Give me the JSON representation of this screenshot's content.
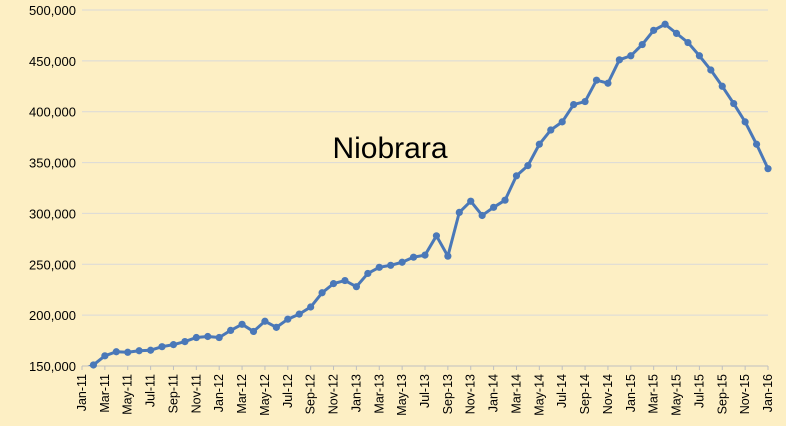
{
  "chart_data": {
    "type": "line",
    "title": "Niobrara",
    "xlabel": "",
    "ylabel": "",
    "ylim": [
      150000,
      500000
    ],
    "y_ticks": [
      "150,000",
      "200,000",
      "250,000",
      "300,000",
      "350,000",
      "400,000",
      "450,000",
      "500,000"
    ],
    "y_tick_values": [
      150000,
      200000,
      250000,
      300000,
      350000,
      400000,
      450000,
      500000
    ],
    "x_tick_labels": [
      "Jan-11",
      "Mar-11",
      "May-11",
      "Jul-11",
      "Sep-11",
      "Nov-11",
      "Jan-12",
      "Mar-12",
      "May-12",
      "Jul-12",
      "Sep-12",
      "Nov-12",
      "Jan-13",
      "Mar-13",
      "May-13",
      "Jul-13",
      "Sep-13",
      "Nov-13",
      "Jan-14",
      "Mar-14",
      "May-14",
      "Jul-14",
      "Sep-14",
      "Nov-14",
      "Jan-15",
      "Mar-15",
      "May-15",
      "Jul-15",
      "Sep-15",
      "Nov-15",
      "Jan-16"
    ],
    "grid": true,
    "legend": "none",
    "colors": {
      "background": "#fdefc4",
      "line": "#4a78b8",
      "grid": "#d9d9d9"
    },
    "categories": [
      "Jan-11",
      "Feb-11",
      "Mar-11",
      "Apr-11",
      "May-11",
      "Jun-11",
      "Jul-11",
      "Aug-11",
      "Sep-11",
      "Oct-11",
      "Nov-11",
      "Dec-11",
      "Jan-12",
      "Feb-12",
      "Mar-12",
      "Apr-12",
      "May-12",
      "Jun-12",
      "Jul-12",
      "Aug-12",
      "Sep-12",
      "Oct-12",
      "Nov-12",
      "Dec-12",
      "Jan-13",
      "Feb-13",
      "Mar-13",
      "Apr-13",
      "May-13",
      "Jun-13",
      "Jul-13",
      "Aug-13",
      "Sep-13",
      "Oct-13",
      "Nov-13",
      "Dec-13",
      "Jan-14",
      "Feb-14",
      "Mar-14",
      "Apr-14",
      "May-14",
      "Jun-14",
      "Jul-14",
      "Aug-14",
      "Sep-14",
      "Oct-14",
      "Nov-14",
      "Dec-14",
      "Jan-15",
      "Feb-15",
      "Mar-15",
      "Apr-15",
      "May-15",
      "Jun-15",
      "Jul-15",
      "Aug-15",
      "Sep-15",
      "Oct-15",
      "Nov-15",
      "Dec-15",
      "Jan-16"
    ],
    "series": [
      {
        "values": [
          146000,
          151000,
          160000,
          164000,
          163500,
          165000,
          165500,
          169000,
          171000,
          174000,
          178000,
          179000,
          178000,
          185000,
          191000,
          184000,
          194000,
          188000,
          196000,
          201000,
          208000,
          222000,
          231000,
          234000,
          228000,
          241000,
          247000,
          249000,
          252000,
          257000,
          259000,
          278000,
          258000,
          301000,
          312000,
          298000,
          306000,
          313000,
          337000,
          347000,
          368000,
          382000,
          390000,
          407000,
          410000,
          431000,
          428000,
          451000,
          455000,
          466000,
          480000,
          486000,
          477000,
          468000,
          455000,
          441000,
          425000,
          408000,
          390000,
          368000,
          344000
        ]
      }
    ]
  }
}
